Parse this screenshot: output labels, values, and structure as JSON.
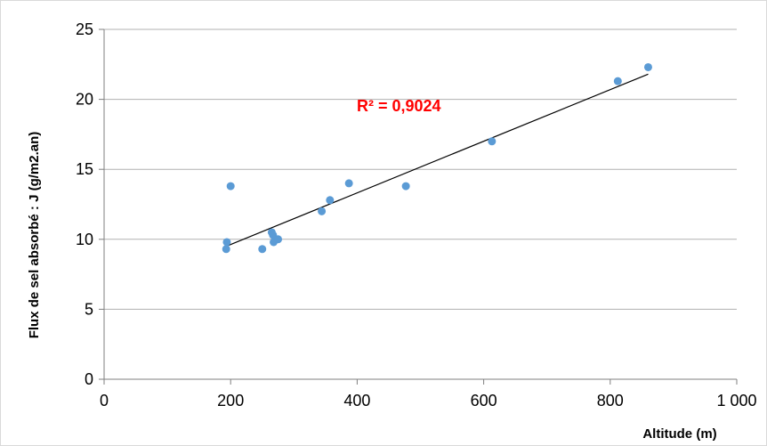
{
  "chart_data": {
    "type": "scatter",
    "xlabel": "Altitude (m)",
    "ylabel": "Flux de sel absorbé : J (g/m2.an)",
    "xlim": [
      0,
      1000
    ],
    "ylim": [
      0,
      25
    ],
    "x_ticks": [
      0,
      200,
      400,
      600,
      800,
      1000
    ],
    "x_tick_labels": [
      "0",
      "200",
      "400",
      "600",
      "800",
      "1 000"
    ],
    "y_ticks": [
      0,
      5,
      10,
      15,
      20,
      25
    ],
    "y_tick_labels": [
      "0",
      "5",
      "10",
      "15",
      "20",
      "25"
    ],
    "grid": "horizontal",
    "series": [
      {
        "x": [
          193,
          194,
          200,
          250,
          265,
          267,
          268,
          275,
          344,
          357,
          387,
          477,
          613,
          812,
          860
        ],
        "y": [
          9.3,
          9.8,
          13.8,
          9.3,
          10.5,
          10.3,
          9.8,
          10.0,
          12.0,
          12.8,
          14.0,
          13.8,
          17.0,
          21.3,
          22.3
        ],
        "color": "#5b9bd5"
      }
    ],
    "trendline": {
      "type": "linear",
      "x": [
        193,
        860
      ],
      "y": [
        9.5,
        21.8
      ],
      "color": "#000000"
    },
    "annotation": {
      "text": "R² = 0,9024",
      "color": "#ff0000"
    }
  }
}
